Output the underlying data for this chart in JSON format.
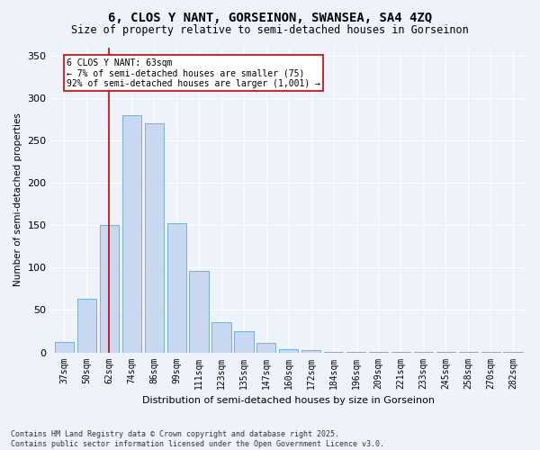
{
  "title1": "6, CLOS Y NANT, GORSEINON, SWANSEA, SA4 4ZQ",
  "title2": "Size of property relative to semi-detached houses in Gorseinon",
  "xlabel": "Distribution of semi-detached houses by size in Gorseinon",
  "ylabel": "Number of semi-detached properties",
  "categories": [
    "37sqm",
    "50sqm",
    "62sqm",
    "74sqm",
    "86sqm",
    "99sqm",
    "111sqm",
    "123sqm",
    "135sqm",
    "147sqm",
    "160sqm",
    "172sqm",
    "184sqm",
    "196sqm",
    "209sqm",
    "221sqm",
    "233sqm",
    "245sqm",
    "258sqm",
    "270sqm",
    "282sqm"
  ],
  "bar_heights": [
    12,
    63,
    150,
    280,
    270,
    152,
    96,
    36,
    25,
    11,
    4,
    3,
    1,
    1,
    1,
    1,
    1,
    1,
    1,
    1,
    1
  ],
  "bar_color": "#c8d8f0",
  "bar_edge_color": "#7aafd4",
  "vline_x_idx": 2,
  "vline_color": "#cc0000",
  "annotation_text": "6 CLOS Y NANT: 63sqm\n← 7% of semi-detached houses are smaller (75)\n92% of semi-detached houses are larger (1,001) →",
  "annotation_box_color": "#ffffff",
  "annotation_box_edge": "#cc0000",
  "footer": "Contains HM Land Registry data © Crown copyright and database right 2025.\nContains public sector information licensed under the Open Government Licence v3.0.",
  "bg_color": "#eef2fb",
  "grid_color": "#ffffff",
  "ylim": [
    0,
    360
  ],
  "yticks": [
    0,
    50,
    100,
    150,
    200,
    250,
    300,
    350
  ],
  "title1_fontsize": 10,
  "title2_fontsize": 8.5,
  "xlabel_fontsize": 8,
  "ylabel_fontsize": 7.5,
  "tick_fontsize": 7,
  "annot_fontsize": 7,
  "footer_fontsize": 6
}
